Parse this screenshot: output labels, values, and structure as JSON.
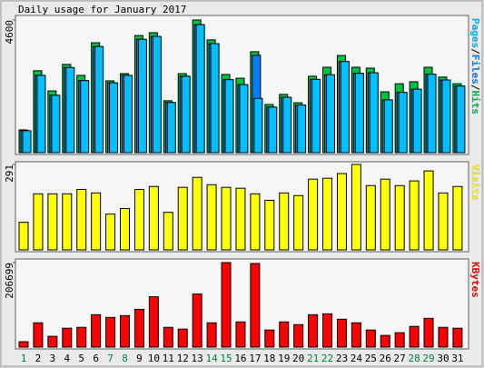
{
  "chart_data": {
    "type": "bar",
    "title": "Daily usage for January 2017",
    "categories": [
      "1",
      "2",
      "3",
      "4",
      "5",
      "6",
      "7",
      "8",
      "9",
      "10",
      "11",
      "12",
      "13",
      "14",
      "15",
      "16",
      "17",
      "18",
      "19",
      "20",
      "21",
      "22",
      "23",
      "24",
      "25",
      "26",
      "27",
      "28",
      "29",
      "30",
      "31"
    ],
    "category_colors": [
      "#008040",
      "#000000",
      "#000000",
      "#000000",
      "#000000",
      "#000000",
      "#008040",
      "#008040",
      "#000000",
      "#000000",
      "#000000",
      "#000000",
      "#000000",
      "#008040",
      "#008040",
      "#000000",
      "#000000",
      "#000000",
      "#000000",
      "#000000",
      "#008040",
      "#008040",
      "#000000",
      "#000000",
      "#000000",
      "#000000",
      "#000000",
      "#008040",
      "#008040",
      "#000000",
      "#000000"
    ],
    "legend_separator": "/",
    "panels": [
      {
        "ylim": [
          0,
          4600
        ],
        "yticks": [
          4600
        ],
        "series": [
          {
            "name": "Hits",
            "color": "#00c040",
            "values": [
              790,
              2840,
              2140,
              3060,
              2680,
              3810,
              2490,
              2740,
              4060,
              4160,
              1800,
              2740,
              4600,
              3910,
              2710,
              2580,
              3500,
              1670,
              2020,
              1730,
              2650,
              2960,
              3370,
              2960,
              2930,
              2110,
              2390,
              2460,
              2960,
              2620,
              2390
            ]
          },
          {
            "name": "Files",
            "color": "#0080ff",
            "values": [
              760,
              2680,
              1990,
              2950,
              2500,
              3680,
              2420,
              2680,
              3930,
              4030,
              1740,
              2650,
              4440,
              3780,
              2530,
              2360,
              3380,
              1580,
              1920,
              1650,
              2540,
              2700,
              3160,
              2750,
              2770,
              1830,
              2090,
              2200,
              2720,
              2520,
              2310
            ]
          },
          {
            "name": "Pages",
            "color": "#00c0ff",
            "values": [
              760,
              2680,
              1990,
              2950,
              2500,
              3680,
              2420,
              2680,
              3930,
              4030,
              1740,
              2650,
              4440,
              3780,
              2530,
              2360,
              1880,
              1580,
              1920,
              1650,
              2540,
              2700,
              3160,
              2750,
              2770,
              1830,
              2090,
              2200,
              2720,
              2520,
              2310
            ]
          }
        ]
      },
      {
        "ylim": [
          0,
          291
        ],
        "yticks": [
          291
        ],
        "series": [
          {
            "name": "Visits",
            "color": "#ffff00",
            "values": [
              94,
              191,
              191,
              191,
              206,
              194,
              122,
              141,
              206,
              216,
              128,
              213,
              247,
              222,
              213,
              210,
              191,
              169,
              194,
              185,
              241,
              244,
              260,
              291,
              219,
              241,
              219,
              235,
              269,
              194,
              216
            ]
          }
        ]
      },
      {
        "ylim": [
          0,
          206699
        ],
        "yticks": [
          206699
        ],
        "series": [
          {
            "name": "KBytes",
            "color": "#ff0000",
            "values": [
              13200,
              59400,
              26400,
              46200,
              48400,
              79200,
              72600,
              77000,
              92400,
              123200,
              48400,
              44000,
              129800,
              59400,
              206699,
              61600,
              204500,
              41800,
              61600,
              55000,
              79200,
              81400,
              68200,
              59400,
              41800,
              28600,
              35200,
              50600,
              70400,
              48400,
              46200
            ]
          }
        ]
      }
    ]
  }
}
